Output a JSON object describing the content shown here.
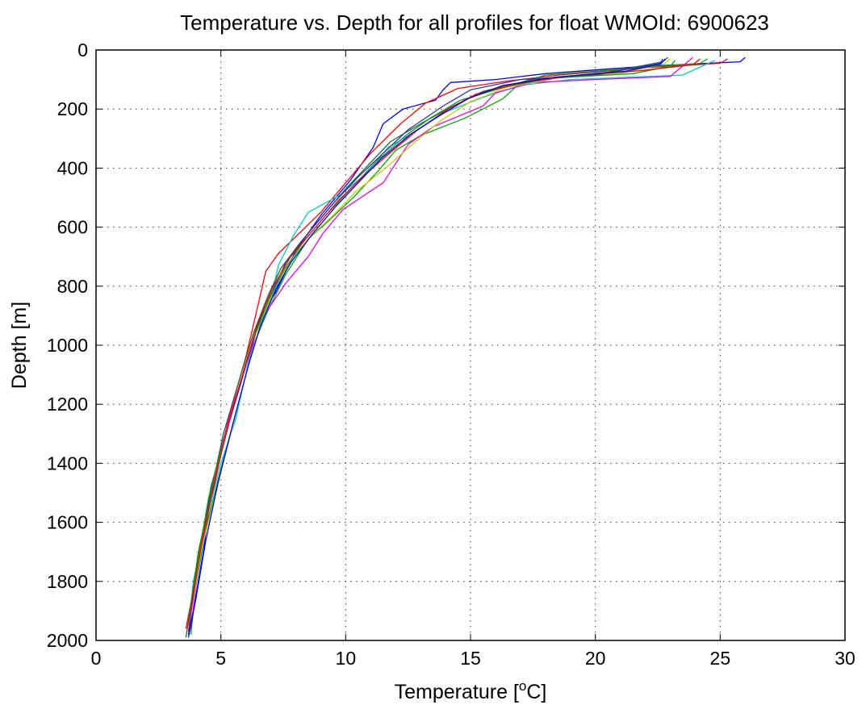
{
  "chart_data": {
    "type": "line",
    "title": "Temperature vs. Depth for all profiles for float WMOId: 6900623",
    "xlabel": "Temperature [",
    "xlabel_sup": "o",
    "xlabel_end": "C]",
    "ylabel": "Depth [m]",
    "xlim": [
      0,
      30
    ],
    "ylim": [
      0,
      2000
    ],
    "y_reversed": true,
    "grid": true,
    "xticks": [
      0,
      5,
      10,
      15,
      20,
      25,
      30
    ],
    "yticks": [
      0,
      200,
      400,
      600,
      800,
      1000,
      1200,
      1400,
      1600,
      1800,
      2000
    ],
    "series_colors": [
      "#0000ff",
      "#ff0000",
      "#00aa00",
      "#00cccc",
      "#ee00ee",
      "#cccc00",
      "#1a6b3a",
      "#3333aa"
    ],
    "series": [
      {
        "color": "#0000ff",
        "points": [
          [
            26.0,
            25
          ],
          [
            25.8,
            40
          ],
          [
            22.0,
            55
          ],
          [
            18.0,
            80
          ],
          [
            16.0,
            100
          ],
          [
            14.2,
            110
          ],
          [
            13.9,
            135
          ],
          [
            13.6,
            170
          ],
          [
            12.3,
            200
          ],
          [
            11.5,
            250
          ],
          [
            11.1,
            330
          ],
          [
            10.2,
            440
          ],
          [
            9.0,
            560
          ],
          [
            8.0,
            680
          ],
          [
            7.2,
            820
          ],
          [
            6.6,
            900
          ],
          [
            5.9,
            1100
          ],
          [
            5.2,
            1300
          ],
          [
            4.6,
            1500
          ],
          [
            4.3,
            1700
          ],
          [
            4.0,
            1850
          ],
          [
            3.7,
            1980
          ]
        ]
      },
      {
        "color": "#ff0000",
        "points": [
          [
            25.3,
            30
          ],
          [
            25.0,
            45
          ],
          [
            22.0,
            60
          ],
          [
            18.5,
            85
          ],
          [
            16.5,
            105
          ],
          [
            14.5,
            130
          ],
          [
            13.2,
            180
          ],
          [
            12.2,
            250
          ],
          [
            11.0,
            350
          ],
          [
            10.0,
            450
          ],
          [
            9.0,
            550
          ],
          [
            7.3,
            690
          ],
          [
            6.8,
            750
          ],
          [
            6.5,
            860
          ],
          [
            6.0,
            1040
          ],
          [
            5.3,
            1250
          ],
          [
            4.8,
            1450
          ],
          [
            4.3,
            1650
          ],
          [
            3.9,
            1830
          ],
          [
            3.6,
            1960
          ]
        ]
      },
      {
        "color": "#00aa00",
        "points": [
          [
            24.5,
            30
          ],
          [
            24.2,
            45
          ],
          [
            21.0,
            65
          ],
          [
            18.0,
            85
          ],
          [
            17.0,
            110
          ],
          [
            16.3,
            165
          ],
          [
            14.8,
            230
          ],
          [
            13.0,
            290
          ],
          [
            12.0,
            340
          ],
          [
            11.3,
            410
          ],
          [
            10.3,
            500
          ],
          [
            9.3,
            580
          ],
          [
            8.5,
            640
          ],
          [
            7.6,
            760
          ],
          [
            6.9,
            880
          ],
          [
            6.3,
            1000
          ],
          [
            5.7,
            1200
          ],
          [
            5.0,
            1420
          ],
          [
            4.4,
            1620
          ],
          [
            4.0,
            1820
          ],
          [
            3.8,
            1980
          ]
        ]
      },
      {
        "color": "#00cccc",
        "points": [
          [
            24.8,
            35
          ],
          [
            24.4,
            50
          ],
          [
            23.5,
            85
          ],
          [
            19.0,
            100
          ],
          [
            17.0,
            120
          ],
          [
            15.5,
            160
          ],
          [
            14.0,
            210
          ],
          [
            12.7,
            280
          ],
          [
            11.7,
            330
          ],
          [
            10.8,
            420
          ],
          [
            9.8,
            490
          ],
          [
            8.5,
            550
          ],
          [
            7.9,
            630
          ],
          [
            7.3,
            730
          ],
          [
            7.0,
            850
          ],
          [
            6.2,
            1020
          ],
          [
            5.6,
            1250
          ],
          [
            5.0,
            1400
          ],
          [
            4.4,
            1600
          ],
          [
            3.9,
            1800
          ],
          [
            3.7,
            1950
          ]
        ]
      },
      {
        "color": "#ee00ee",
        "points": [
          [
            23.9,
            25
          ],
          [
            23.7,
            40
          ],
          [
            23.0,
            90
          ],
          [
            20.0,
            100
          ],
          [
            17.5,
            110
          ],
          [
            16.0,
            145
          ],
          [
            15.5,
            190
          ],
          [
            13.5,
            260
          ],
          [
            12.5,
            320
          ],
          [
            11.5,
            450
          ],
          [
            9.9,
            540
          ],
          [
            9.1,
            620
          ],
          [
            8.5,
            700
          ],
          [
            7.6,
            790
          ],
          [
            6.8,
            890
          ],
          [
            6.2,
            1020
          ],
          [
            5.5,
            1200
          ],
          [
            5.0,
            1350
          ],
          [
            4.5,
            1550
          ],
          [
            4.1,
            1750
          ],
          [
            3.8,
            1960
          ]
        ]
      },
      {
        "color": "#cccc00",
        "points": [
          [
            23.0,
            30
          ],
          [
            22.8,
            45
          ],
          [
            21.0,
            80
          ],
          [
            18.5,
            95
          ],
          [
            16.5,
            125
          ],
          [
            15.0,
            175
          ],
          [
            13.8,
            240
          ],
          [
            12.8,
            310
          ],
          [
            11.6,
            400
          ],
          [
            10.4,
            480
          ],
          [
            9.5,
            560
          ],
          [
            8.6,
            630
          ],
          [
            7.9,
            700
          ],
          [
            7.2,
            800
          ],
          [
            6.6,
            920
          ],
          [
            6.0,
            1100
          ],
          [
            5.4,
            1300
          ],
          [
            4.8,
            1500
          ],
          [
            4.2,
            1700
          ],
          [
            3.9,
            1870
          ]
        ]
      },
      {
        "color": "#1a6b3a",
        "points": [
          [
            22.9,
            25
          ],
          [
            22.7,
            40
          ],
          [
            20.5,
            75
          ],
          [
            17.5,
            100
          ],
          [
            15.5,
            140
          ],
          [
            14.3,
            190
          ],
          [
            13.0,
            250
          ],
          [
            11.8,
            310
          ],
          [
            10.9,
            390
          ],
          [
            10.0,
            470
          ],
          [
            9.0,
            570
          ],
          [
            8.2,
            650
          ],
          [
            7.4,
            740
          ],
          [
            6.9,
            830
          ],
          [
            6.3,
            960
          ],
          [
            5.8,
            1100
          ],
          [
            5.1,
            1300
          ],
          [
            4.6,
            1500
          ],
          [
            4.1,
            1700
          ],
          [
            3.8,
            1880
          ],
          [
            3.6,
            1990
          ]
        ]
      },
      {
        "color": "#3333aa",
        "points": [
          [
            22.7,
            30
          ],
          [
            22.6,
            45
          ],
          [
            20.0,
            85
          ],
          [
            17.0,
            100
          ],
          [
            15.0,
            135
          ],
          [
            13.9,
            190
          ],
          [
            12.5,
            270
          ],
          [
            11.5,
            350
          ],
          [
            10.5,
            430
          ],
          [
            9.5,
            520
          ],
          [
            8.6,
            610
          ],
          [
            7.6,
            720
          ],
          [
            7.0,
            830
          ],
          [
            6.4,
            950
          ],
          [
            5.8,
            1120
          ],
          [
            5.2,
            1300
          ],
          [
            4.6,
            1480
          ],
          [
            4.2,
            1680
          ],
          [
            3.9,
            1850
          ],
          [
            3.7,
            1970
          ]
        ]
      },
      {
        "color": "#00aa00",
        "points": [
          [
            23.2,
            35
          ],
          [
            23.0,
            55
          ],
          [
            21.5,
            80
          ],
          [
            18.2,
            95
          ],
          [
            16.4,
            125
          ],
          [
            14.6,
            170
          ],
          [
            13.4,
            230
          ],
          [
            12.4,
            290
          ],
          [
            11.2,
            380
          ],
          [
            10.2,
            470
          ],
          [
            9.2,
            560
          ],
          [
            8.3,
            650
          ],
          [
            7.5,
            750
          ],
          [
            6.9,
            850
          ],
          [
            6.3,
            980
          ],
          [
            5.7,
            1150
          ],
          [
            5.1,
            1330
          ],
          [
            4.5,
            1520
          ],
          [
            4.1,
            1720
          ],
          [
            3.8,
            1900
          ]
        ]
      },
      {
        "color": "#ff0000",
        "points": [
          [
            24.2,
            30
          ],
          [
            23.9,
            50
          ],
          [
            21.8,
            70
          ],
          [
            18.8,
            90
          ],
          [
            16.8,
            115
          ],
          [
            15.2,
            150
          ],
          [
            14.1,
            200
          ],
          [
            12.9,
            270
          ],
          [
            11.9,
            340
          ],
          [
            10.8,
            420
          ],
          [
            9.7,
            510
          ],
          [
            8.8,
            600
          ],
          [
            7.8,
            700
          ],
          [
            7.1,
            800
          ],
          [
            6.5,
            920
          ],
          [
            6.0,
            1060
          ],
          [
            5.4,
            1240
          ],
          [
            4.8,
            1440
          ],
          [
            4.3,
            1640
          ],
          [
            3.9,
            1840
          ],
          [
            3.7,
            1970
          ]
        ]
      },
      {
        "color": "#0000ff",
        "points": [
          [
            22.8,
            30
          ],
          [
            22.6,
            48
          ],
          [
            21.2,
            72
          ],
          [
            18.4,
            92
          ],
          [
            16.3,
            120
          ],
          [
            14.9,
            165
          ],
          [
            13.7,
            225
          ],
          [
            12.6,
            285
          ],
          [
            11.4,
            370
          ],
          [
            10.5,
            450
          ],
          [
            9.6,
            530
          ],
          [
            8.7,
            620
          ],
          [
            7.8,
            720
          ],
          [
            7.2,
            810
          ],
          [
            6.6,
            930
          ],
          [
            6.1,
            1070
          ],
          [
            5.5,
            1260
          ],
          [
            4.9,
            1460
          ],
          [
            4.4,
            1660
          ],
          [
            4.0,
            1860
          ],
          [
            3.7,
            1990
          ]
        ]
      }
    ]
  }
}
